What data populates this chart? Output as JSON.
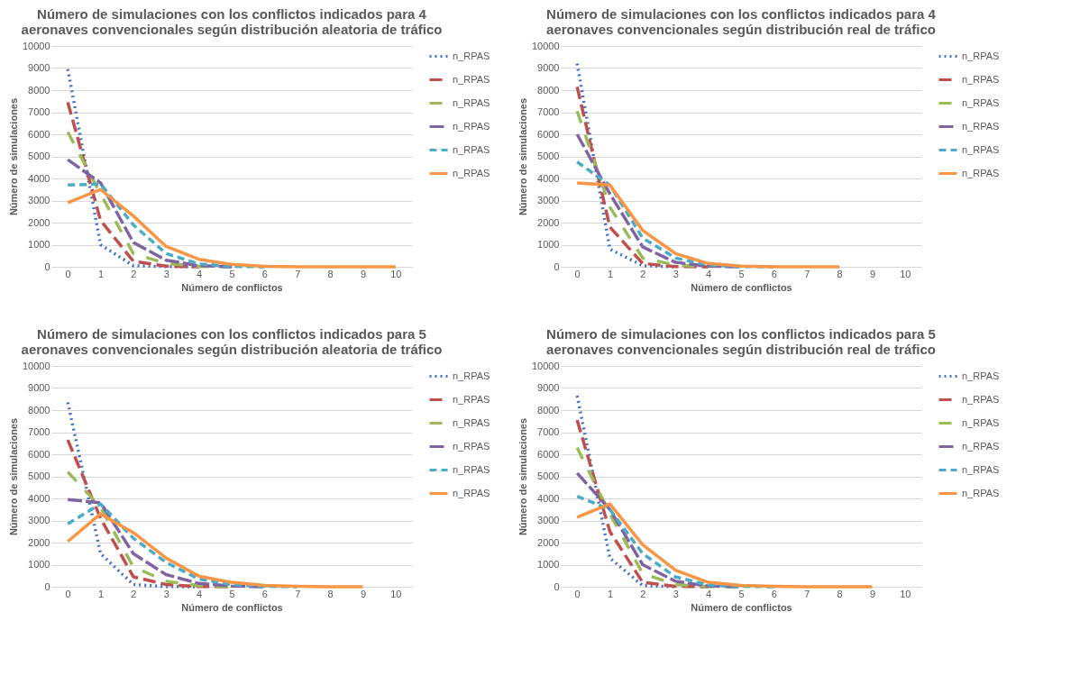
{
  "chart_data": [
    {
      "type": "line",
      "title": "Número de simulaciones con los conflictos indicados para 4 aeronaves convencionales según distribución aleatoria de tráfico",
      "xlabel": "Número de conflictos",
      "ylabel": "Número de simulaciones",
      "categories": [
        "0",
        "1",
        "2",
        "3",
        "4",
        "5",
        "6",
        "7",
        "8",
        "9",
        "10"
      ],
      "ylim": [
        0,
        10000
      ],
      "yticks": [
        0,
        1000,
        2000,
        3000,
        4000,
        5000,
        6000,
        7000,
        8000,
        9000,
        10000
      ],
      "grid": "y",
      "legend": "right",
      "series": [
        {
          "name": "n_RPAS",
          "color": "#4472c4",
          "line_style": "dotted",
          "values": [
            8950,
            1000,
            50,
            10,
            0,
            null,
            null,
            null,
            null,
            null,
            null
          ]
        },
        {
          "name": "n_RPAS",
          "color": "#c0504d",
          "line_style": "dashed",
          "values": [
            7450,
            2100,
            250,
            30,
            0,
            null,
            null,
            null,
            null,
            null,
            null
          ]
        },
        {
          "name": "n_RPAS",
          "color": "#9bbb59",
          "line_style": "dashed",
          "values": [
            6100,
            3300,
            600,
            150,
            20,
            0,
            null,
            null,
            null,
            null,
            null
          ]
        },
        {
          "name": "n_RPAS",
          "color": "#8064a2",
          "line_style": "dashed",
          "values": [
            4850,
            3800,
            1100,
            300,
            50,
            0,
            null,
            null,
            null,
            null,
            null
          ]
        },
        {
          "name": "n_RPAS",
          "color": "#4bacc6",
          "line_style": "dashed",
          "values": [
            3700,
            3750,
            1900,
            600,
            130,
            20,
            0,
            null,
            null,
            null,
            null
          ]
        },
        {
          "name": "n_RPAS",
          "color": "#f79646",
          "line_style": "solid",
          "values": [
            2900,
            3500,
            2300,
            920,
            340,
            110,
            20,
            0,
            0,
            0,
            0
          ]
        }
      ]
    },
    {
      "type": "line",
      "title": "Número de simulaciones con los conflictos indicados para 4 aeronaves convencionales según distribución real de tráfico",
      "xlabel": "Número de conflictos",
      "ylabel": "Número de simulaciones",
      "categories": [
        "0",
        "1",
        "2",
        "3",
        "4",
        "5",
        "6",
        "7",
        "8",
        "9",
        "10"
      ],
      "ylim": [
        0,
        10000
      ],
      "yticks": [
        0,
        1000,
        2000,
        3000,
        4000,
        5000,
        6000,
        7000,
        8000,
        9000,
        10000
      ],
      "grid": "y",
      "legend": "right",
      "series": [
        {
          "name": "n_RPAS",
          "color": "#4472c4",
          "line_style": "dotted",
          "values": [
            9200,
            800,
            50,
            0,
            null,
            null,
            null,
            null,
            null,
            null,
            null
          ]
        },
        {
          "name": "n_RPAS",
          "color": "#c0504d",
          "line_style": "dashed",
          "values": [
            8150,
            1800,
            150,
            10,
            0,
            null,
            null,
            null,
            null,
            null,
            null
          ]
        },
        {
          "name": "n_RPAS",
          "color": "#9bbb59",
          "line_style": "dashed",
          "values": [
            7050,
            2700,
            400,
            80,
            0,
            null,
            null,
            null,
            null,
            null,
            null
          ]
        },
        {
          "name": "n_RPAS",
          "color": "#8064a2",
          "line_style": "dashed",
          "values": [
            6000,
            3300,
            900,
            200,
            30,
            0,
            null,
            null,
            null,
            null,
            null
          ]
        },
        {
          "name": "n_RPAS",
          "color": "#4bacc6",
          "line_style": "dashed",
          "values": [
            4750,
            3700,
            1300,
            400,
            80,
            10,
            0,
            null,
            null,
            null,
            null
          ]
        },
        {
          "name": "n_RPAS",
          "color": "#f79646",
          "line_style": "solid",
          "values": [
            3800,
            3700,
            1650,
            600,
            150,
            30,
            0,
            0,
            0,
            null,
            null
          ]
        }
      ]
    },
    {
      "type": "line",
      "title": "Número de simulaciones con los conflictos indicados para 5 aeronaves convencionales según distribución aleatoria de tráfico",
      "xlabel": "Número de conflictos",
      "ylabel": "Número de simulaciones",
      "categories": [
        "0",
        "1",
        "2",
        "3",
        "4",
        "5",
        "6",
        "7",
        "8",
        "9",
        "10"
      ],
      "ylim": [
        0,
        10000
      ],
      "yticks": [
        0,
        1000,
        2000,
        3000,
        4000,
        5000,
        6000,
        7000,
        8000,
        9000,
        10000
      ],
      "grid": "y",
      "legend": "right",
      "series": [
        {
          "name": "n_RPAS",
          "color": "#4472c4",
          "line_style": "dotted",
          "values": [
            8350,
            1500,
            100,
            10,
            0,
            null,
            null,
            null,
            null,
            null,
            null
          ]
        },
        {
          "name": "n_RPAS",
          "color": "#c0504d",
          "line_style": "dashed",
          "values": [
            6650,
            3100,
            450,
            100,
            10,
            0,
            null,
            null,
            null,
            null,
            null
          ]
        },
        {
          "name": "n_RPAS",
          "color": "#9bbb59",
          "line_style": "dashed",
          "values": [
            5200,
            3600,
            900,
            250,
            50,
            0,
            null,
            null,
            null,
            null,
            null
          ]
        },
        {
          "name": "n_RPAS",
          "color": "#8064a2",
          "line_style": "dashed",
          "values": [
            3950,
            3800,
            1500,
            550,
            150,
            30,
            0,
            null,
            null,
            null,
            null
          ]
        },
        {
          "name": "n_RPAS",
          "color": "#4bacc6",
          "line_style": "dashed",
          "values": [
            2850,
            3750,
            2200,
            1100,
            350,
            100,
            20,
            0,
            null,
            null,
            null
          ]
        },
        {
          "name": "n_RPAS",
          "color": "#f79646",
          "line_style": "solid",
          "values": [
            2050,
            3300,
            2450,
            1300,
            480,
            200,
            60,
            20,
            0,
            0,
            null
          ]
        }
      ]
    },
    {
      "type": "line",
      "title": "Número de simulaciones con los conflictos indicados para 5 aeronaves convencionales según distribución real de tráfico",
      "xlabel": "Número de conflictos",
      "ylabel": "Número de simulaciones",
      "categories": [
        "0",
        "1",
        "2",
        "3",
        "4",
        "5",
        "6",
        "7",
        "8",
        "9",
        "10"
      ],
      "ylim": [
        0,
        10000
      ],
      "yticks": [
        0,
        1000,
        2000,
        3000,
        4000,
        5000,
        6000,
        7000,
        8000,
        9000,
        10000
      ],
      "grid": "y",
      "legend": "right",
      "series": [
        {
          "name": "n_RPAS",
          "color": "#4472c4",
          "line_style": "dotted",
          "values": [
            8650,
            1300,
            50,
            0,
            null,
            null,
            null,
            null,
            null,
            null,
            null
          ]
        },
        {
          "name": "n_RPAS",
          "color": "#c0504d",
          "line_style": "dashed",
          "values": [
            7550,
            2500,
            200,
            20,
            0,
            null,
            null,
            null,
            null,
            null,
            null
          ]
        },
        {
          "name": "n_RPAS",
          "color": "#9bbb59",
          "line_style": "dashed",
          "values": [
            6300,
            3300,
            600,
            100,
            10,
            0,
            null,
            null,
            null,
            null,
            null
          ]
        },
        {
          "name": "n_RPAS",
          "color": "#8064a2",
          "line_style": "dashed",
          "values": [
            5150,
            3500,
            1000,
            250,
            30,
            0,
            null,
            null,
            null,
            null,
            null
          ]
        },
        {
          "name": "n_RPAS",
          "color": "#4bacc6",
          "line_style": "dashed",
          "values": [
            4100,
            3500,
            1500,
            450,
            80,
            20,
            0,
            null,
            null,
            null,
            null
          ]
        },
        {
          "name": "n_RPAS",
          "color": "#f79646",
          "line_style": "solid",
          "values": [
            3150,
            3750,
            1900,
            750,
            200,
            60,
            20,
            0,
            0,
            0,
            null
          ]
        }
      ]
    }
  ]
}
